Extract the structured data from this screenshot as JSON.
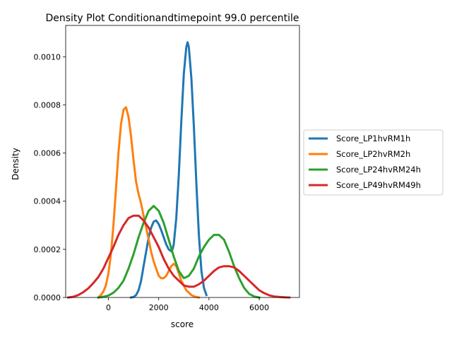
{
  "chart_data": {
    "type": "line",
    "title": "Density Plot Conditionandtimepoint 99.0 percentile",
    "xlabel": "score",
    "ylabel": "Density",
    "xlim": [
      -1700,
      7600
    ],
    "ylim": [
      0,
      0.00113
    ],
    "x_ticks": [
      0,
      2000,
      4000,
      6000
    ],
    "x_tick_labels": [
      "0",
      "2000",
      "4000",
      "6000"
    ],
    "y_ticks": [
      0,
      0.0002,
      0.0004,
      0.0006,
      0.0008,
      0.001
    ],
    "y_tick_labels": [
      "0.0000",
      "0.0002",
      "0.0004",
      "0.0006",
      "0.0008",
      "0.0010"
    ],
    "grid": false,
    "legend_position": "outside-right",
    "series": [
      {
        "name": "Score_LP1hvRM1h",
        "color": "#1f77b4",
        "x": [
          900,
          1000,
          1100,
          1200,
          1300,
          1400,
          1500,
          1600,
          1700,
          1800,
          1900,
          2000,
          2100,
          2200,
          2300,
          2400,
          2500,
          2550,
          2600,
          2700,
          2800,
          2900,
          3000,
          3100,
          3150,
          3200,
          3300,
          3400,
          3500,
          3600,
          3700,
          3800,
          3900
        ],
        "y": [
          0,
          2e-06,
          1e-05,
          3e-05,
          7e-05,
          0.00013,
          0.00019,
          0.00025,
          0.00029,
          0.000315,
          0.00032,
          0.000305,
          0.00028,
          0.00025,
          0.00022,
          0.0002,
          0.000192,
          0.0002,
          0.00022,
          0.00033,
          0.00051,
          0.00073,
          0.00093,
          0.00104,
          0.00106,
          0.00104,
          0.00091,
          0.00071,
          0.00047,
          0.00026,
          0.00011,
          4e-05,
          1e-05
        ]
      },
      {
        "name": "Score_LP2hvRM2h",
        "color": "#ff7f0e",
        "x": [
          -400,
          -300,
          -200,
          -100,
          0,
          100,
          200,
          300,
          400,
          500,
          600,
          700,
          800,
          900,
          1000,
          1100,
          1200,
          1300,
          1400,
          1500,
          1600,
          1700,
          1800,
          1900,
          2000,
          2100,
          2200,
          2300,
          2400,
          2500,
          2600,
          2700,
          2800,
          2900,
          3000,
          3100,
          3200,
          3300,
          3400,
          3500,
          3600
        ],
        "y": [
          0,
          1e-05,
          2.5e-05,
          5e-05,
          0.0001,
          0.00018,
          0.0003,
          0.00045,
          0.0006,
          0.00072,
          0.00078,
          0.00079,
          0.00075,
          0.00067,
          0.00057,
          0.00048,
          0.00043,
          0.00039,
          0.00034,
          0.00029,
          0.00024,
          0.00019,
          0.00015,
          0.00012,
          9e-05,
          8e-05,
          8e-05,
          9e-05,
          0.00011,
          0.00013,
          0.00014,
          0.00013,
          0.0001,
          7e-05,
          5e-05,
          3e-05,
          2e-05,
          1e-05,
          5e-06,
          2e-06,
          0
        ]
      },
      {
        "name": "Score_LP24hvRM24h",
        "color": "#2ca02c",
        "x": [
          -400,
          -200,
          0,
          200,
          400,
          600,
          800,
          1000,
          1200,
          1400,
          1600,
          1800,
          2000,
          2200,
          2400,
          2600,
          2800,
          3000,
          3200,
          3400,
          3600,
          3800,
          4000,
          4200,
          4400,
          4600,
          4800,
          5000,
          5200,
          5400,
          5600,
          5800,
          6000
        ],
        "y": [
          0,
          3e-06,
          8e-06,
          2e-05,
          4e-05,
          7e-05,
          0.00012,
          0.00018,
          0.00025,
          0.00031,
          0.00036,
          0.00038,
          0.00036,
          0.00031,
          0.00024,
          0.00017,
          0.00011,
          8e-05,
          9e-05,
          0.00012,
          0.00017,
          0.00021,
          0.00024,
          0.00026,
          0.00026,
          0.00024,
          0.00019,
          0.00013,
          8e-05,
          4e-05,
          1.5e-05,
          4e-06,
          0
        ]
      },
      {
        "name": "Score_LP49hvRM49h",
        "color": "#d62728",
        "x": [
          -1600,
          -1400,
          -1200,
          -1000,
          -800,
          -600,
          -400,
          -200,
          0,
          200,
          400,
          600,
          800,
          1000,
          1200,
          1400,
          1600,
          1800,
          2000,
          2200,
          2400,
          2600,
          2800,
          3000,
          3200,
          3400,
          3600,
          3800,
          4000,
          4200,
          4400,
          4600,
          4800,
          5000,
          5200,
          5400,
          5600,
          5800,
          6000,
          6200,
          6400,
          6600,
          6800,
          7000,
          7200
        ],
        "y": [
          0,
          3e-06,
          1e-05,
          2.2e-05,
          3.8e-05,
          6e-05,
          8.5e-05,
          0.00012,
          0.000165,
          0.00021,
          0.00026,
          0.0003,
          0.00033,
          0.00034,
          0.00034,
          0.00032,
          0.00029,
          0.00025,
          0.00021,
          0.00016,
          0.00012,
          9e-05,
          7e-05,
          5e-05,
          4.5e-05,
          4.5e-05,
          5.5e-05,
          7e-05,
          9e-05,
          0.00011,
          0.000125,
          0.00013,
          0.00013,
          0.000125,
          0.00011,
          9e-05,
          7e-05,
          5e-05,
          3e-05,
          1.8e-05,
          9e-06,
          4e-06,
          2e-06,
          1e-06,
          0
        ]
      }
    ]
  }
}
